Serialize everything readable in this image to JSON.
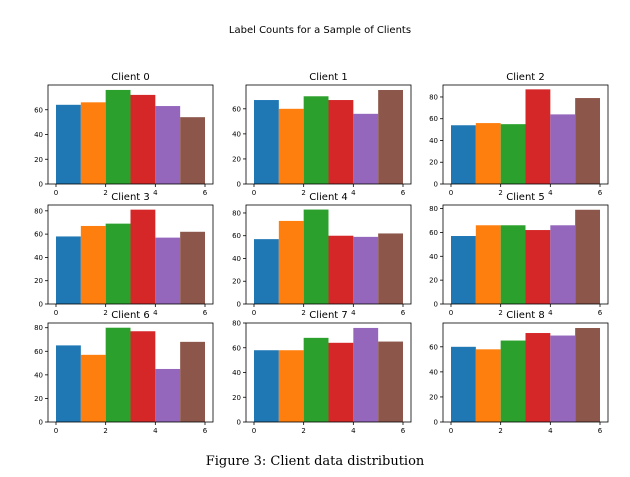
{
  "figure": {
    "title": "Label Counts for a Sample of Clients",
    "caption": "Figure 3: Client data distribution"
  },
  "colors": [
    "#1f77b4",
    "#ff7f0e",
    "#2ca02c",
    "#d62728",
    "#9467bd",
    "#8c564b"
  ],
  "chart_data": [
    {
      "type": "bar",
      "title": "Client 0",
      "categories": [
        0,
        1,
        2,
        3,
        4,
        5
      ],
      "values": [
        64,
        66,
        76,
        72,
        63,
        54
      ],
      "xlim": [
        0,
        6
      ],
      "ylim": [
        0,
        80
      ],
      "yticks": [
        0,
        20,
        40,
        60
      ],
      "xticks": [
        0,
        2,
        4,
        6
      ]
    },
    {
      "type": "bar",
      "title": "Client 1",
      "categories": [
        0,
        1,
        2,
        3,
        4,
        5
      ],
      "values": [
        67,
        60,
        70,
        67,
        56,
        75
      ],
      "xlim": [
        0,
        6
      ],
      "ylim": [
        0,
        79
      ],
      "yticks": [
        0,
        20,
        40,
        60
      ],
      "xticks": [
        0,
        2,
        4,
        6
      ]
    },
    {
      "type": "bar",
      "title": "Client 2",
      "categories": [
        0,
        1,
        2,
        3,
        4,
        5
      ],
      "values": [
        54,
        56,
        55,
        87,
        64,
        79
      ],
      "xlim": [
        0,
        6
      ],
      "ylim": [
        0,
        91
      ],
      "yticks": [
        0,
        20,
        40,
        60,
        80
      ],
      "xticks": [
        0,
        2,
        4,
        6
      ]
    },
    {
      "type": "bar",
      "title": "Client 3",
      "categories": [
        0,
        1,
        2,
        3,
        4,
        5
      ],
      "values": [
        58,
        67,
        69,
        81,
        57,
        62
      ],
      "xlim": [
        0,
        6
      ],
      "ylim": [
        0,
        85
      ],
      "yticks": [
        0,
        20,
        40,
        60,
        80
      ],
      "xticks": [
        0,
        2,
        4,
        6
      ]
    },
    {
      "type": "bar",
      "title": "Client 4",
      "categories": [
        0,
        1,
        2,
        3,
        4,
        5
      ],
      "values": [
        57,
        73,
        83,
        60,
        59,
        62
      ],
      "xlim": [
        0,
        6
      ],
      "ylim": [
        0,
        87
      ],
      "yticks": [
        0,
        20,
        40,
        60,
        80
      ],
      "xticks": [
        0,
        2,
        4,
        6
      ]
    },
    {
      "type": "bar",
      "title": "Client 5",
      "categories": [
        0,
        1,
        2,
        3,
        4,
        5
      ],
      "values": [
        57,
        66,
        66,
        62,
        66,
        79
      ],
      "xlim": [
        0,
        6
      ],
      "ylim": [
        0,
        83
      ],
      "yticks": [
        0,
        20,
        40,
        60,
        80
      ],
      "xticks": [
        0,
        2,
        4,
        6
      ]
    },
    {
      "type": "bar",
      "title": "Client 6",
      "categories": [
        0,
        1,
        2,
        3,
        4,
        5
      ],
      "values": [
        65,
        57,
        80,
        77,
        45,
        68
      ],
      "xlim": [
        0,
        6
      ],
      "ylim": [
        0,
        84
      ],
      "yticks": [
        0,
        20,
        40,
        60,
        80
      ],
      "xticks": [
        0,
        2,
        4,
        6
      ]
    },
    {
      "type": "bar",
      "title": "Client 7",
      "categories": [
        0,
        1,
        2,
        3,
        4,
        5
      ],
      "values": [
        58,
        58,
        68,
        64,
        76,
        65
      ],
      "xlim": [
        0,
        6
      ],
      "ylim": [
        0,
        80
      ],
      "yticks": [
        0,
        20,
        40,
        60,
        80
      ],
      "xticks": [
        0,
        2,
        4,
        6
      ]
    },
    {
      "type": "bar",
      "title": "Client 8",
      "categories": [
        0,
        1,
        2,
        3,
        4,
        5
      ],
      "values": [
        60,
        58,
        65,
        71,
        69,
        75
      ],
      "xlim": [
        0,
        6
      ],
      "ylim": [
        0,
        79
      ],
      "yticks": [
        0,
        20,
        40,
        60
      ],
      "xticks": [
        0,
        2,
        4,
        6
      ]
    }
  ]
}
